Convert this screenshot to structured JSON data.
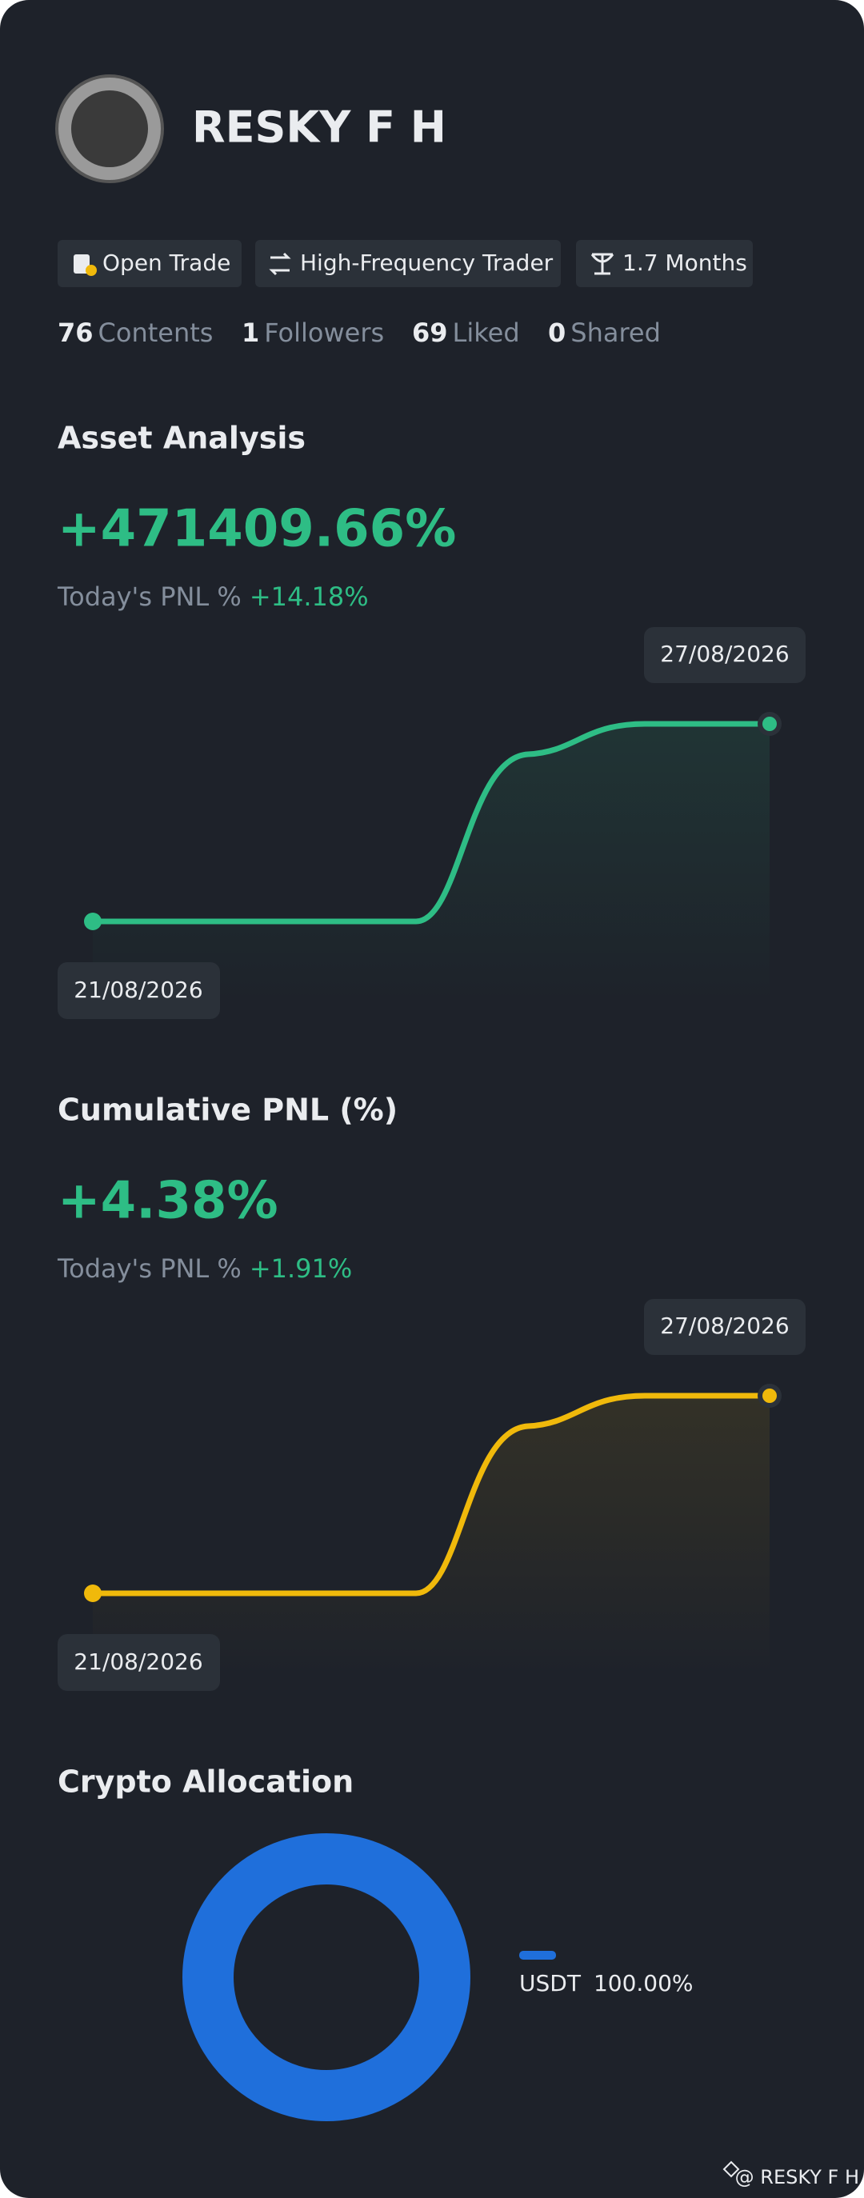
{
  "profile": {
    "name": "RESKY F H",
    "tags": [
      "Open Trade",
      "High-Frequency Trader",
      "1.7 Months"
    ],
    "stats": [
      {
        "count": 76,
        "label": "Contents"
      },
      {
        "count": 1,
        "label": "Followers"
      },
      {
        "count": 69,
        "label": "Liked"
      },
      {
        "count": 0,
        "label": "Shared"
      }
    ]
  },
  "asset_analysis": {
    "title": "Asset Analysis",
    "value": "+471409.66%",
    "today_label": "Today's PNL %",
    "today_value": "+14.18%",
    "start_date": "21/08/2026",
    "end_date": "27/08/2026"
  },
  "cumulative_pnl": {
    "title": "Cumulative PNL (%)",
    "value": "+4.38%",
    "today_label": "Today's PNL %",
    "today_value": "+1.91%",
    "start_date": "21/08/2026",
    "end_date": "27/08/2026"
  },
  "allocation": {
    "title": "Crypto Allocation",
    "items": [
      {
        "name": "USDT",
        "value": 100,
        "value_label": "100.00%",
        "color": "#1f6fdb"
      }
    ]
  },
  "watermark": "@ RESKY F H"
}
